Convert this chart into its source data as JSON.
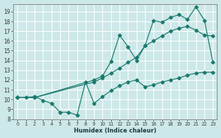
{
  "xlabel": "Humidex (Indice chaleur)",
  "bg_color": "#cde8e8",
  "grid_color": "#ffffff",
  "line_color": "#1a7a6e",
  "xlim": [
    -0.5,
    23.5
  ],
  "ylim": [
    8,
    19.8
  ],
  "xticks": [
    0,
    1,
    2,
    3,
    4,
    5,
    6,
    7,
    8,
    9,
    10,
    11,
    12,
    13,
    14,
    15,
    16,
    17,
    18,
    19,
    20,
    21,
    22,
    23
  ],
  "yticks": [
    8,
    9,
    10,
    11,
    12,
    13,
    14,
    15,
    16,
    17,
    18,
    19
  ],
  "line1_x": [
    0,
    1,
    2,
    3,
    4,
    5,
    6,
    7,
    8,
    9,
    10,
    11,
    12,
    13,
    14,
    15,
    16,
    17,
    18,
    19,
    20,
    21,
    22,
    23
  ],
  "line1_y": [
    10.2,
    10.2,
    10.3,
    9.9,
    9.6,
    8.7,
    8.7,
    8.4,
    11.8,
    9.6,
    10.3,
    10.9,
    11.4,
    11.8,
    12.0,
    11.3,
    11.5,
    11.8,
    12.0,
    12.2,
    12.5,
    12.7,
    12.8,
    12.8
  ],
  "line2_x": [
    0,
    2,
    9,
    10,
    11,
    12,
    13,
    14,
    15,
    16,
    17,
    18,
    19,
    20,
    21,
    22,
    23
  ],
  "line2_y": [
    10.2,
    10.2,
    11.8,
    12.2,
    12.7,
    13.2,
    13.8,
    14.3,
    15.5,
    16.0,
    16.5,
    17.0,
    17.3,
    17.5,
    17.1,
    16.6,
    16.5
  ],
  "line3_x": [
    0,
    2,
    9,
    10,
    11,
    12,
    13,
    14,
    15,
    16,
    17,
    18,
    19,
    20,
    21,
    22,
    23
  ],
  "line3_y": [
    10.2,
    10.2,
    12.0,
    12.4,
    13.9,
    16.6,
    15.4,
    14.0,
    15.5,
    18.1,
    17.9,
    18.4,
    18.7,
    18.2,
    19.5,
    18.1,
    13.8
  ]
}
